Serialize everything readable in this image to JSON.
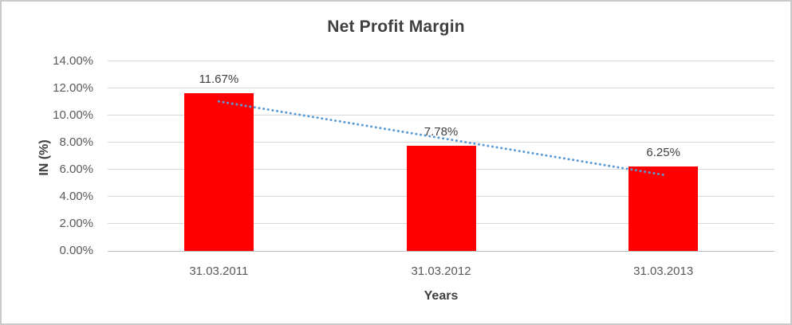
{
  "chart_data": {
    "type": "bar",
    "title": "Net Profit Margin",
    "xlabel": "Years",
    "ylabel": "IN (%)",
    "categories": [
      "31.03.2011",
      "31.03.2012",
      "31.03.2013"
    ],
    "values": [
      11.67,
      7.78,
      6.25
    ],
    "data_labels": [
      "11.67%",
      "7.78%",
      "6.25%"
    ],
    "ylim": [
      0,
      14
    ],
    "ytick_step": 2,
    "ytick_labels": [
      "0.00%",
      "2.00%",
      "4.00%",
      "6.00%",
      "8.00%",
      "10.00%",
      "12.00%",
      "14.00%"
    ],
    "grid": true,
    "legend_position": "none",
    "bar_color": "#ff0000",
    "trendline": {
      "kind": "linear",
      "style": "dotted",
      "color": "#5b9bd5"
    },
    "colors": {
      "grid": "#d9d9d9",
      "axis_line": "#bdbdbd",
      "title_text": "#3f3f3f",
      "tick_text": "#595959",
      "data_label_text": "#404040"
    }
  }
}
